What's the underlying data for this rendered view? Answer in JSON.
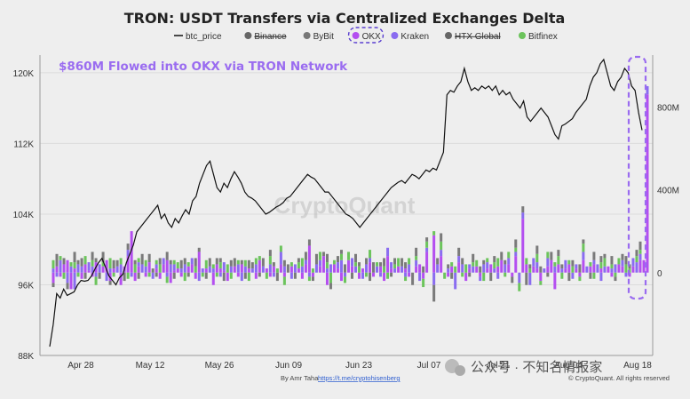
{
  "chart_data": {
    "type": "bar",
    "title": "TRON: USDT Transfers via Centralized Exchanges Delta",
    "annotation": "$860M Flowed into OKX via TRON Network",
    "watermark": "CryptoQuant",
    "legend": [
      {
        "name": "btc_price",
        "color": "#111111",
        "marker": "line",
        "disabled": false
      },
      {
        "name": "Binance",
        "color": "#666666",
        "marker": "dot",
        "disabled": true
      },
      {
        "name": "ByBit",
        "color": "#777777",
        "marker": "dot",
        "disabled": false
      },
      {
        "name": "OKX",
        "color": "#b44ff0",
        "marker": "dot",
        "disabled": false,
        "highlighted": true
      },
      {
        "name": "Kraken",
        "color": "#8a6cf0",
        "marker": "dot",
        "disabled": false
      },
      {
        "name": "HTX Global",
        "color": "#666666",
        "marker": "dot",
        "disabled": true
      },
      {
        "name": "Bitfinex",
        "color": "#6cc45c",
        "marker": "dot",
        "disabled": false
      }
    ],
    "x_tick_labels": [
      "Apr 28",
      "May 12",
      "May 26",
      "Jun 09",
      "Jun 23",
      "Jul 07",
      "Jul 21",
      "Aug 04",
      "Aug 18"
    ],
    "y_left_ticks": [
      "120K",
      "112K",
      "104K",
      "96K",
      "88K"
    ],
    "y_left_lim": [
      88000,
      122000
    ],
    "y_right_ticks": [
      "800M",
      "400M",
      "0"
    ],
    "y_right_lim": [
      -400,
      1050
    ],
    "series_colors": {
      "OKX": "#b44ff0",
      "Kraken": "#8a6cf0",
      "Bitfinex": "#6cc45c",
      "ByBit": "#7a7a7a"
    },
    "btc_price": [
      89.0,
      91.5,
      95.0,
      94.5,
      95.5,
      94.8,
      95.0,
      95.2,
      96.0,
      96.5,
      96.4,
      96.5,
      97.0,
      97.8,
      98.5,
      99.0,
      98.0,
      97.0,
      96.5,
      96.0,
      96.8,
      97.2,
      98.5,
      99.5,
      100.5,
      102.0,
      102.5,
      103.0,
      103.5,
      104.0,
      104.5,
      105.0,
      103.5,
      104.0,
      103.0,
      102.5,
      103.5,
      103.0,
      103.8,
      104.5,
      104.0,
      105.5,
      106.0,
      107.5,
      108.5,
      109.5,
      110.0,
      108.5,
      107.0,
      106.5,
      107.5,
      107.0,
      108.0,
      108.8,
      108.2,
      107.5,
      106.5,
      106.0,
      105.8,
      105.5,
      105.0,
      104.5,
      104.0,
      104.2,
      104.5,
      104.8,
      105.0,
      105.3,
      105.8,
      106.0,
      106.5,
      107.0,
      107.5,
      108.0,
      108.5,
      108.2,
      108.0,
      107.5,
      107.0,
      106.5,
      106.5,
      106.0,
      105.5,
      105.0,
      104.5,
      104.0,
      103.8,
      103.5,
      103.0,
      102.5,
      103.0,
      103.5,
      104.0,
      104.5,
      105.0,
      105.5,
      106.0,
      106.5,
      107.0,
      107.3,
      107.6,
      107.8,
      107.5,
      108.0,
      108.5,
      108.3,
      108.0,
      108.5,
      109.0,
      108.8,
      109.2,
      109.0,
      110.0,
      111.0,
      117.5,
      118.0,
      117.8,
      118.5,
      119.0,
      120.5,
      119.0,
      118.0,
      118.3,
      118.0,
      118.5,
      118.2,
      118.5,
      118.0,
      118.5,
      117.5,
      118.0,
      117.5,
      117.8,
      117.0,
      116.5,
      116.0,
      116.8,
      115.0,
      114.5,
      115.0,
      115.5,
      116.0,
      115.5,
      115.0,
      114.0,
      113.0,
      112.5,
      114.0,
      114.2,
      114.5,
      114.8,
      115.5,
      116.0,
      116.5,
      117.0,
      118.5,
      119.5,
      120.0,
      121.0,
      121.5,
      120.0,
      118.5,
      118.0,
      119.0,
      119.5,
      120.5,
      120.0,
      118.5,
      118.0,
      115.5,
      113.5
    ],
    "bars": {
      "OKX": [
        -50,
        30,
        -20,
        40,
        60,
        -80,
        20,
        0,
        -30,
        40,
        10,
        -20,
        50,
        0,
        30,
        60,
        -40,
        20,
        0,
        -60,
        30,
        80,
        200,
        -40,
        30,
        0,
        -20,
        50,
        0,
        20,
        -30,
        40,
        60,
        -50,
        10,
        20,
        -20,
        0,
        30,
        40,
        -30,
        100,
        0,
        20,
        0,
        -60,
        40,
        20,
        10,
        -40,
        0,
        30,
        -20,
        40,
        0,
        20,
        0,
        -30,
        60,
        0,
        20,
        -20,
        30,
        0,
        40,
        -20,
        0,
        30,
        0,
        20,
        -30,
        40,
        130,
        -20,
        0,
        30,
        80,
        -60,
        0,
        40,
        20,
        -40,
        0,
        60,
        30,
        0,
        -30,
        20,
        0,
        50,
        -20,
        0,
        30,
        -40,
        80,
        20,
        0,
        30,
        0,
        20,
        -20,
        0,
        30,
        40,
        -30,
        100,
        0,
        180,
        0,
        80,
        0,
        -20,
        30,
        0,
        50,
        0,
        -40,
        20,
        0,
        30,
        -20,
        0,
        20,
        40,
        0,
        30,
        60,
        0,
        40,
        -20,
        80,
        0,
        260,
        40,
        0,
        30,
        20,
        -40,
        0,
        30,
        60,
        -80,
        40,
        0,
        20,
        40,
        0,
        20,
        -20,
        60,
        0,
        30,
        40,
        0,
        20,
        0,
        30,
        -20,
        0,
        40,
        30,
        0,
        -20,
        30,
        0,
        60,
        60,
        860
      ],
      "Kraken": [
        20,
        -20,
        60,
        0,
        -50,
        30,
        -80,
        40,
        30,
        0,
        40,
        30,
        -20,
        40,
        0,
        -40,
        20,
        0,
        30,
        40,
        0,
        30,
        -20,
        0,
        20,
        40,
        30,
        0,
        -30,
        20,
        0,
        30,
        -20,
        40,
        30,
        0,
        20,
        40,
        0,
        30,
        0,
        -40,
        20,
        0,
        30,
        20,
        0,
        -20,
        40,
        0,
        30,
        0,
        40,
        -40,
        30,
        0,
        20,
        40,
        0,
        30,
        0,
        40,
        -20,
        0,
        60,
        30,
        0,
        -30,
        40,
        0,
        30,
        20,
        -20,
        0,
        40,
        30,
        0,
        20,
        40,
        0,
        30,
        60,
        -20,
        0,
        40,
        30,
        0,
        -30,
        40,
        20,
        0,
        30,
        -20,
        0,
        40,
        30,
        20,
        0,
        30,
        -20,
        40,
        0,
        30,
        -40,
        0,
        20,
        0,
        -60,
        40,
        30,
        0,
        20,
        0,
        -80,
        30,
        40,
        0,
        20,
        30,
        0,
        -20,
        40,
        30,
        0,
        20,
        -30,
        0,
        40,
        30,
        0,
        20,
        -50,
        30,
        0,
        -60,
        40,
        30,
        0,
        20,
        40,
        0,
        30,
        0,
        20,
        40,
        0,
        -30,
        20,
        0,
        40,
        30,
        0,
        20,
        40,
        -40,
        30,
        0,
        20,
        40,
        0,
        30,
        -20,
        0,
        40,
        50,
        30,
        0,
        40,
        0
      ],
      "Bitfinex": [
        40,
        0,
        20,
        -30,
        0,
        20,
        30,
        -20,
        0,
        40,
        0,
        30,
        -40,
        0,
        20,
        0,
        50,
        -20,
        0,
        30,
        0,
        -30,
        0,
        40,
        20,
        0,
        30,
        -20,
        0,
        20,
        40,
        0,
        -30,
        0,
        20,
        30,
        0,
        -40,
        20,
        0,
        30,
        0,
        -20,
        40,
        0,
        20,
        -20,
        30,
        0,
        40,
        -30,
        0,
        20,
        0,
        30,
        -40,
        0,
        30,
        20,
        0,
        -30,
        40,
        0,
        20,
        30,
        -40,
        0,
        20,
        0,
        30,
        40,
        0,
        -20,
        20,
        0,
        40,
        0,
        30,
        -50,
        20,
        0,
        30,
        -30,
        40,
        0,
        20,
        30,
        0,
        -20,
        40,
        0,
        20,
        0,
        30,
        -30,
        0,
        20,
        40,
        0,
        -20,
        30,
        0,
        20,
        0,
        -40,
        30,
        0,
        20,
        0,
        40,
        -30,
        0,
        20,
        30,
        0,
        -20,
        40,
        0,
        20,
        30,
        0,
        -40,
        20,
        0,
        30,
        40,
        0,
        -20,
        30,
        0,
        20,
        -40,
        0,
        30,
        20,
        0,
        40,
        -20,
        0,
        30,
        0,
        20,
        40,
        -30,
        0,
        20,
        30,
        0,
        -20,
        40,
        0,
        20,
        -30,
        0,
        30,
        40,
        0,
        20,
        -20,
        30,
        0,
        40,
        20,
        0,
        30,
        20,
        0
      ],
      "ByBit": [
        -20,
        60,
        0,
        30,
        -30,
        0,
        50,
        20,
        40,
        -30,
        0,
        40,
        20,
        -30,
        50,
        0,
        -20,
        40,
        30,
        0,
        -40,
        30,
        0,
        20,
        -30,
        50,
        0,
        40,
        20,
        -20,
        30,
        0,
        40,
        20,
        -30,
        0,
        40,
        30,
        -20,
        0,
        40,
        20,
        0,
        -30,
        40,
        0,
        30,
        20,
        -40,
        0,
        30,
        40,
        0,
        20,
        -30,
        40,
        30,
        0,
        -20,
        40,
        0,
        30,
        20,
        -40,
        0,
        30,
        40,
        0,
        -30,
        20,
        0,
        40,
        30,
        -20,
        50,
        0,
        20,
        40,
        -30,
        0,
        30,
        20,
        40,
        0,
        -30,
        40,
        20,
        0,
        30,
        -40,
        50,
        0,
        20,
        40,
        0,
        -20,
        30,
        0,
        40,
        30,
        0,
        -60,
        40,
        0,
        30,
        20,
        0,
        -80,
        30,
        40,
        0,
        20,
        -30,
        0,
        40,
        30,
        0,
        -20,
        40,
        0,
        30,
        20,
        0,
        -40,
        30,
        0,
        40,
        20,
        0,
        -30,
        40,
        0,
        30,
        -60,
        20,
        0,
        40,
        30,
        0,
        -20,
        40,
        0,
        30,
        20,
        0,
        -40,
        30,
        0,
        40,
        20,
        0,
        -30,
        40,
        0,
        30,
        20,
        0,
        40,
        -20,
        0,
        30,
        40,
        20,
        0,
        30,
        40,
        0
      ]
    }
  },
  "footer": {
    "author": "By Amr Taha",
    "link": "https://t.me/cryptohisenberg",
    "copyright": "© CryptoQuant. All rights reserved"
  },
  "wechat_watermark": "公众号 · 不知名情报家"
}
